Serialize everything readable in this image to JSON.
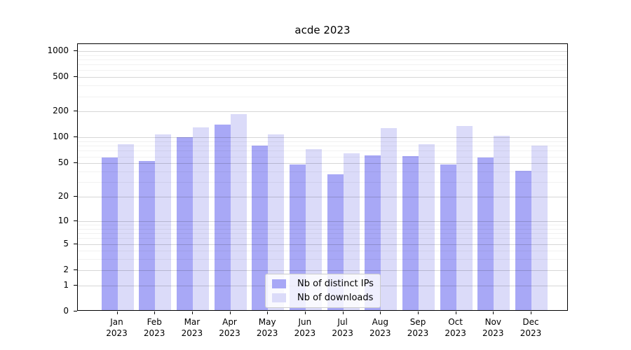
{
  "figure": {
    "title": "acde 2023"
  },
  "chart_data": {
    "type": "bar",
    "title": "acde 2023",
    "categories": [
      "Jan",
      "Feb",
      "Mar",
      "Apr",
      "May",
      "Jun",
      "Jul",
      "Aug",
      "Sep",
      "Oct",
      "Nov",
      "Dec"
    ],
    "category_year": "2023",
    "series": [
      {
        "name": "Nb of distinct IPs",
        "color": "#a8a8f6",
        "values": [
          56,
          51,
          98,
          137,
          78,
          47,
          36,
          60,
          58,
          47,
          56,
          39
        ]
      },
      {
        "name": "Nb of downloads",
        "color": "#dbdbf9",
        "values": [
          80,
          105,
          127,
          181,
          104,
          70,
          63,
          123,
          81,
          132,
          101,
          77
        ]
      }
    ],
    "yscale": "log1p",
    "yticks": [
      0,
      1,
      2,
      5,
      10,
      20,
      50,
      100,
      200,
      500,
      1000
    ],
    "yticks_minor": [
      3,
      4,
      6,
      7,
      8,
      9,
      30,
      40,
      60,
      70,
      80,
      90,
      300,
      400,
      600,
      700,
      800,
      900
    ],
    "ylim": [
      0,
      1200
    ],
    "grid": "on",
    "legend_position": "lower center",
    "legend_entries": [
      "Nb of distinct IPs",
      "Nb of downloads"
    ]
  }
}
